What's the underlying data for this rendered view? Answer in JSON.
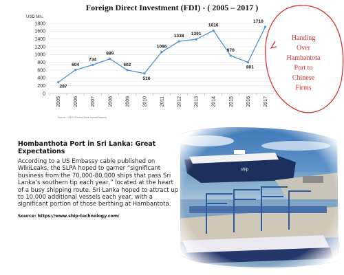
{
  "chart_data": {
    "type": "line",
    "title": "Foreign Direct Investment (FDI) - ( 2005 – 2017 )",
    "ylabel": "USD Mn.",
    "xlabel": "",
    "categories": [
      "2005",
      "2006",
      "2007",
      "2008",
      "2009",
      "2010",
      "2011",
      "2012",
      "2013",
      "2014",
      "2015",
      "2016",
      "2017"
    ],
    "values": [
      287,
      604,
      734,
      889,
      602,
      516,
      1066,
      1338,
      1391,
      1616,
      970,
      801,
      1710
    ],
    "ylim": [
      0,
      1800
    ],
    "yticks": [
      0,
      200,
      400,
      600,
      800,
      1000,
      1200,
      1400,
      1600,
      1800
    ],
    "grid": true,
    "line_color": "#4d8fd1",
    "source": "Source : CBSL/Central Bank Annual Reports"
  },
  "callout": {
    "lines": [
      "Handing",
      "Over",
      "Hambantota",
      "Port to",
      "Chinese",
      "Firms"
    ],
    "color": "#d8322f"
  },
  "article": {
    "title": "Hombanthota Port in Sri Lanka: Great Expectations",
    "body": "According to a US Embassy cable published on WikiLeaks, the SLPA hoped to garner “significant business from the 70,000-80,000 ships that pass Sri Lanka’s southern tip each year,” located at the heart of a busy shipping route. Sri Lanka hoped to attract up to 10,000 additional vessels each year, with a significant portion of those berthing at Hambantota.",
    "source": "Source: https://www.ship-technology.com/"
  },
  "photo": {
    "alt": "port-photo"
  }
}
